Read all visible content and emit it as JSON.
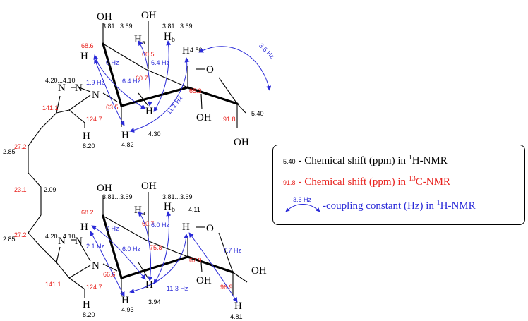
{
  "colors": {
    "h1_shift": "#000000",
    "c13_shift": "#e8231f",
    "coupling": "#2a2ad8"
  },
  "legend": {
    "h1_sample": "5.40",
    "h1_text_pre": "- Chemical shift (ppm) in ",
    "h1_sup": "1",
    "h1_text_post": "H-NMR",
    "c13_sample": "91.8",
    "c13_text_pre": "- Chemical shift (ppm) in ",
    "c13_sup": "13",
    "c13_text_post": "C-NMR",
    "j_sample": "3.6 Hz",
    "j_text_pre": "-coupling constant (Hz) in ",
    "j_sup": "1",
    "j_text_post": "H-NMR"
  },
  "atoms": {
    "oh": "OH",
    "o": "O",
    "h": "H",
    "n": "N",
    "sub_a": "a",
    "sub_b": "b"
  },
  "top_molecule": {
    "h1": {
      "oh_top": "3.81...3.69",
      "oh_side": "3.81...3.69",
      "ring_h_upper": "4.50",
      "h_left": "4.20...4.10",
      "anomeric": "5.40",
      "h_center": "4.30",
      "h_lower": "4.82",
      "triazole_h": "8.20"
    },
    "c13": {
      "c_oh": "68.6",
      "c_side": "60.5",
      "c_ring": "60.7",
      "c_ring2": "65.3",
      "c_n": "63.5",
      "anomeric": "91.8",
      "triazole_c4": "141.1",
      "triazole_c5": "124.7"
    },
    "j": {
      "j_top_right": "3.6 Hz",
      "j_0": "0 Hz",
      "j_64a": "6.4 Hz",
      "j_64b": "6.4 Hz",
      "j_19": "1.9 Hz",
      "j_111": "11.1 Hz"
    }
  },
  "linker": {
    "h1_upper": "2.85",
    "c13_upper": "27.2",
    "h1_mid": "2.09",
    "c13_mid": "23.1",
    "h1_lower": "2.85",
    "c13_lower": "27.2"
  },
  "bottom_molecule": {
    "h1": {
      "oh_top": "3.81...3.69",
      "oh_side": "3.81...3.69",
      "ring_h_upper": "4.11",
      "h_left": "4.20...4.10",
      "anomeric": "4.81",
      "h_center": "3.94",
      "h_lower": "4.93",
      "triazole_h": "8.20"
    },
    "c13": {
      "c_oh": "68.2",
      "c_side": "60.7",
      "c_ring": "75.8",
      "c_ring2": "67.9",
      "c_n": "66.6",
      "anomeric": "96.9",
      "triazole_c4": "141.1",
      "triazole_c5": "124.7"
    },
    "j": {
      "j_0": "0 Hz",
      "j_60a": "6.0 Hz",
      "j_60b": "6.0 Hz",
      "j_21": "2.1 Hz",
      "j_77": "7.7 Hz",
      "j_113": "11.3 Hz"
    }
  }
}
